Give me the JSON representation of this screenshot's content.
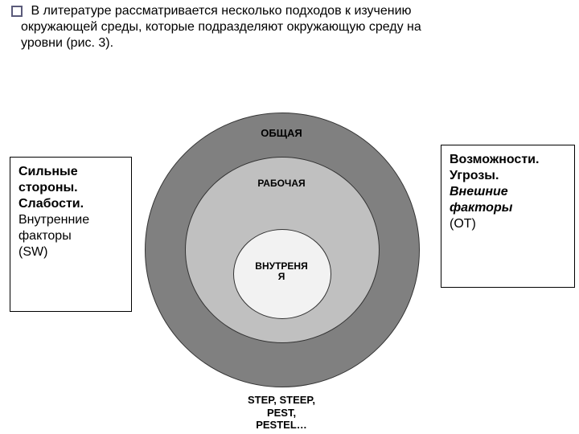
{
  "paragraph": {
    "line1": "В литературе рассматривается несколько подходов к изучению",
    "line2": "окружающей среды, которые подразделяют окружающую среду на",
    "line3": "уровни (рис. 3)."
  },
  "diagram": {
    "rings": {
      "outer": {
        "label": "ОБЩАЯ",
        "fill": "#808080",
        "stroke": "#333333"
      },
      "middle": {
        "label": "РАБОЧАЯ",
        "fill": "#c0c0c0",
        "stroke": "#333333"
      },
      "inner": {
        "label": "ВНУТРЕНЯЯ",
        "fill": "#f2f2f2",
        "stroke": "#333333"
      }
    },
    "caption": "STEP, STEEP, PEST, PESTEL…",
    "label_fontsize": 13,
    "label_weight": "bold"
  },
  "left_box": {
    "line1_b": "Сильные",
    "line2_b": "стороны.",
    "line3_b": "Слабости.",
    "line4": "Внутренние",
    "line5": "факторы",
    "line6": "(SW)"
  },
  "right_box": {
    "line1_b": "Возможности.",
    "line2_b": "Угрозы.",
    "line3_bi": "Внешние",
    "line4_bi": "факторы",
    "line5": "(OT)"
  },
  "colors": {
    "page_bg": "#ffffff",
    "text": "#000000",
    "box_border": "#000000",
    "bullet_border": "#5a5a7a"
  }
}
